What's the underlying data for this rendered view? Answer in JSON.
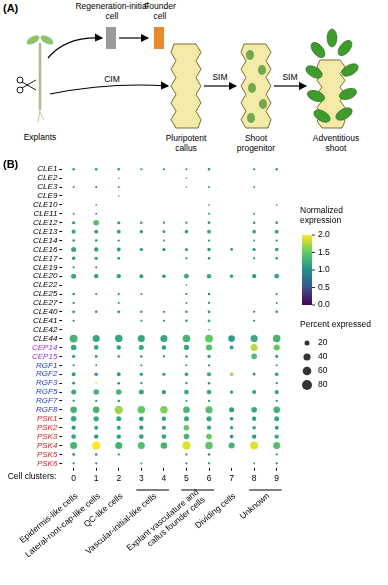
{
  "diagram": {
    "label": "(A)",
    "regeneration_initial_cell": "Regeneration-initial cell",
    "founder_cell": "Founder cell",
    "explants": "Explants",
    "callus": "Pluripotent callus",
    "progenitor": "Shoot progenitor",
    "shoot": "Adventitious shoot",
    "edge_explants_callus": "CIM",
    "edge_callus_progenitor": "SIM",
    "edge_progenitor_shoot": "SIM"
  },
  "chart_data": {
    "type": "bubble",
    "label": "(B)",
    "genes": [
      "CLE1",
      "CLE2",
      "CLE3",
      "CLE9",
      "CLE10",
      "CLE11",
      "CLE12",
      "CLE13",
      "CLE14",
      "CLE16",
      "CLE17",
      "CLE19",
      "CLE20",
      "CLE22",
      "CLE25",
      "CLE27",
      "CLE40",
      "CLE41",
      "CLE42",
      "CLE44",
      "CEP14",
      "CEP15",
      "RGF1",
      "RGF2",
      "RGF3",
      "RGF5",
      "RGF7",
      "RGF8",
      "PSK1",
      "PSK2",
      "PSK3",
      "PSK4",
      "PSK5",
      "PSK6"
    ],
    "gene_colors": [
      "#000000",
      "#000000",
      "#000000",
      "#000000",
      "#000000",
      "#000000",
      "#000000",
      "#000000",
      "#000000",
      "#000000",
      "#000000",
      "#000000",
      "#000000",
      "#000000",
      "#000000",
      "#000000",
      "#000000",
      "#000000",
      "#000000",
      "#000000",
      "#9b30c8",
      "#9b30c8",
      "#1f3cc0",
      "#1f3cc0",
      "#1f3cc0",
      "#1f3cc0",
      "#1f3cc0",
      "#1f3cc0",
      "#d92020",
      "#d92020",
      "#d92020",
      "#d92020",
      "#d92020",
      "#d92020"
    ],
    "clusters": [
      0,
      1,
      2,
      3,
      4,
      5,
      6,
      7,
      8,
      9
    ],
    "x_label": "Cell clusters:",
    "cluster_groups": [
      {
        "name": "Epidermis-like cells",
        "clusters": [
          0
        ]
      },
      {
        "name": "Lateral-root-cap-like cells",
        "clusters": [
          1
        ]
      },
      {
        "name": "QC-like cells",
        "clusters": [
          2
        ]
      },
      {
        "name": "Vascular-initial-like cells",
        "clusters": [
          3,
          4
        ]
      },
      {
        "name": "Explant vasculature and callus founder cells",
        "clusters": [
          5,
          6
        ]
      },
      {
        "name": "Dividing cells",
        "clusters": [
          7
        ]
      },
      {
        "name": "Unknown",
        "clusters": [
          8,
          9
        ]
      }
    ],
    "expression": [
      [
        1.0,
        1.1,
        1.0,
        1.0,
        1.0,
        0.9,
        1.0,
        null,
        0.9,
        1.1
      ],
      [
        null,
        null,
        1.0,
        null,
        null,
        1.0,
        null,
        null,
        null,
        null
      ],
      [
        1.0,
        1.0,
        1.0,
        null,
        null,
        0.9,
        1.0,
        null,
        1.0,
        null
      ],
      [
        null,
        null,
        1.0,
        null,
        null,
        null,
        null,
        null,
        null,
        null
      ],
      [
        null,
        1.0,
        null,
        null,
        null,
        null,
        1.0,
        null,
        null,
        1.0
      ],
      [
        1.0,
        1.0,
        null,
        null,
        null,
        null,
        1.0,
        null,
        1.0,
        null
      ],
      [
        1.1,
        1.4,
        1.1,
        1.0,
        1.0,
        1.0,
        1.1,
        null,
        1.0,
        1.1
      ],
      [
        1.2,
        1.1,
        1.1,
        1.0,
        1.0,
        1.1,
        1.2,
        null,
        1.1,
        1.2
      ],
      [
        1.0,
        1.0,
        1.0,
        null,
        1.0,
        null,
        1.0,
        null,
        1.0,
        1.0
      ],
      [
        1.2,
        1.1,
        1.1,
        1.0,
        1.0,
        1.1,
        1.1,
        1.0,
        1.0,
        1.1
      ],
      [
        1.1,
        1.1,
        1.0,
        null,
        null,
        1.0,
        1.0,
        null,
        1.0,
        1.0
      ],
      [
        1.0,
        1.0,
        null,
        null,
        null,
        null,
        null,
        null,
        null,
        null
      ],
      [
        1.2,
        1.1,
        1.1,
        1.1,
        1.0,
        1.2,
        1.2,
        1.0,
        1.1,
        1.2
      ],
      [
        null,
        null,
        null,
        null,
        null,
        1.0,
        null,
        null,
        null,
        null
      ],
      [
        1.0,
        1.0,
        1.0,
        1.0,
        null,
        1.0,
        1.0,
        null,
        null,
        1.0
      ],
      [
        1.0,
        null,
        1.0,
        null,
        null,
        1.0,
        1.0,
        null,
        null,
        1.0
      ],
      [
        1.0,
        1.0,
        1.0,
        1.0,
        1.0,
        1.0,
        1.0,
        null,
        1.0,
        1.0
      ],
      [
        1.0,
        null,
        null,
        1.0,
        1.0,
        1.0,
        1.1,
        null,
        1.0,
        null
      ],
      [
        null,
        null,
        null,
        null,
        null,
        null,
        1.0,
        null,
        null,
        null
      ],
      [
        1.3,
        1.2,
        1.2,
        1.2,
        1.2,
        1.3,
        1.5,
        1.1,
        1.2,
        1.3
      ],
      [
        1.2,
        1.2,
        1.1,
        1.2,
        1.1,
        1.2,
        1.4,
        1.1,
        1.8,
        1.5
      ],
      [
        1.1,
        1.0,
        1.0,
        1.0,
        1.0,
        1.0,
        1.1,
        null,
        1.4,
        1.1
      ],
      [
        1.0,
        1.0,
        null,
        1.0,
        null,
        1.0,
        1.0,
        null,
        null,
        1.0
      ],
      [
        1.1,
        1.1,
        1.1,
        1.0,
        1.0,
        1.1,
        1.2,
        1.7,
        1.0,
        1.1
      ],
      [
        1.0,
        2.0,
        1.0,
        1.0,
        null,
        1.0,
        1.0,
        null,
        null,
        1.0
      ],
      [
        1.2,
        1.3,
        1.3,
        1.2,
        1.1,
        1.2,
        1.2,
        1.0,
        1.1,
        1.2
      ],
      [
        1.0,
        1.0,
        1.0,
        null,
        null,
        1.0,
        1.0,
        null,
        null,
        1.0
      ],
      [
        1.3,
        1.3,
        1.7,
        1.5,
        1.6,
        1.3,
        1.4,
        1.1,
        1.2,
        1.3
      ],
      [
        1.2,
        1.2,
        1.2,
        1.1,
        1.1,
        1.2,
        1.2,
        1.0,
        1.1,
        1.2
      ],
      [
        1.1,
        1.1,
        1.1,
        1.1,
        1.1,
        1.5,
        1.2,
        1.0,
        1.1,
        1.1
      ],
      [
        1.2,
        1.1,
        1.1,
        1.2,
        1.2,
        1.3,
        1.5,
        1.0,
        1.1,
        1.2
      ],
      [
        1.3,
        2.0,
        1.3,
        1.4,
        1.3,
        1.9,
        1.5,
        1.3,
        1.9,
        1.4
      ],
      [
        1.0,
        1.0,
        1.0,
        null,
        null,
        1.0,
        1.0,
        null,
        null,
        1.0
      ],
      [
        1.0,
        1.0,
        null,
        1.0,
        null,
        1.0,
        1.0,
        null,
        1.0,
        1.0
      ]
    ],
    "percent": [
      [
        5,
        6,
        5,
        4,
        4,
        3,
        5,
        null,
        4,
        5
      ],
      [
        null,
        null,
        2,
        null,
        null,
        2,
        null,
        null,
        null,
        null
      ],
      [
        3,
        4,
        3,
        null,
        null,
        2,
        3,
        null,
        3,
        null
      ],
      [
        null,
        null,
        2,
        null,
        null,
        null,
        null,
        null,
        null,
        null
      ],
      [
        null,
        2,
        null,
        null,
        null,
        null,
        2,
        null,
        null,
        2
      ],
      [
        3,
        3,
        null,
        null,
        null,
        null,
        3,
        null,
        3,
        null
      ],
      [
        8,
        25,
        8,
        5,
        4,
        4,
        6,
        null,
        5,
        6
      ],
      [
        14,
        12,
        12,
        8,
        6,
        10,
        12,
        null,
        10,
        12
      ],
      [
        5,
        5,
        4,
        null,
        3,
        null,
        4,
        null,
        3,
        4
      ],
      [
        20,
        15,
        12,
        8,
        8,
        8,
        10,
        6,
        8,
        10
      ],
      [
        10,
        8,
        6,
        null,
        null,
        4,
        5,
        null,
        4,
        5
      ],
      [
        4,
        4,
        null,
        null,
        null,
        null,
        null,
        null,
        null,
        null
      ],
      [
        20,
        15,
        14,
        12,
        10,
        18,
        16,
        8,
        14,
        18
      ],
      [
        null,
        null,
        null,
        null,
        null,
        2,
        null,
        null,
        null,
        null
      ],
      [
        5,
        4,
        4,
        3,
        null,
        4,
        5,
        null,
        null,
        4
      ],
      [
        4,
        null,
        3,
        null,
        null,
        3,
        4,
        null,
        null,
        3
      ],
      [
        6,
        5,
        6,
        5,
        4,
        5,
        6,
        null,
        4,
        5
      ],
      [
        4,
        null,
        null,
        4,
        4,
        5,
        6,
        null,
        4,
        null
      ],
      [
        null,
        null,
        null,
        null,
        null,
        null,
        2,
        null,
        null,
        null
      ],
      [
        50,
        40,
        45,
        40,
        40,
        45,
        50,
        35,
        40,
        45
      ],
      [
        25,
        18,
        15,
        20,
        15,
        22,
        30,
        12,
        40,
        30
      ],
      [
        8,
        6,
        5,
        5,
        4,
        5,
        8,
        null,
        25,
        8
      ],
      [
        4,
        3,
        null,
        3,
        null,
        3,
        4,
        null,
        null,
        3
      ],
      [
        12,
        10,
        12,
        8,
        8,
        10,
        14,
        10,
        6,
        10
      ],
      [
        6,
        3,
        5,
        4,
        null,
        4,
        5,
        null,
        null,
        4
      ],
      [
        20,
        25,
        25,
        20,
        15,
        18,
        18,
        8,
        12,
        15
      ],
      [
        4,
        4,
        5,
        null,
        null,
        3,
        4,
        null,
        null,
        4
      ],
      [
        35,
        35,
        55,
        45,
        45,
        35,
        40,
        20,
        25,
        35
      ],
      [
        25,
        22,
        20,
        18,
        15,
        20,
        22,
        10,
        15,
        20
      ],
      [
        15,
        12,
        12,
        15,
        12,
        25,
        15,
        8,
        10,
        12
      ],
      [
        18,
        15,
        15,
        18,
        18,
        25,
        25,
        10,
        15,
        15
      ],
      [
        40,
        55,
        40,
        40,
        35,
        55,
        45,
        30,
        50,
        40
      ],
      [
        6,
        5,
        4,
        null,
        null,
        4,
        5,
        null,
        null,
        4
      ],
      [
        4,
        4,
        null,
        3,
        null,
        4,
        4,
        null,
        3,
        4
      ]
    ],
    "colorbar": {
      "title": "Normalized expression",
      "range": [
        0,
        2
      ],
      "ticks": [
        {
          "value": 0,
          "label": "0.0"
        },
        {
          "value": 0.5,
          "label": "0.5"
        },
        {
          "value": 1,
          "label": "1.0"
        },
        {
          "value": 1.5,
          "label": "1.5"
        },
        {
          "value": 2,
          "label": "2.0"
        }
      ]
    },
    "size_legend": {
      "title": "Percent expressed",
      "values": [
        20,
        40,
        60,
        80
      ]
    },
    "grid": false
  }
}
